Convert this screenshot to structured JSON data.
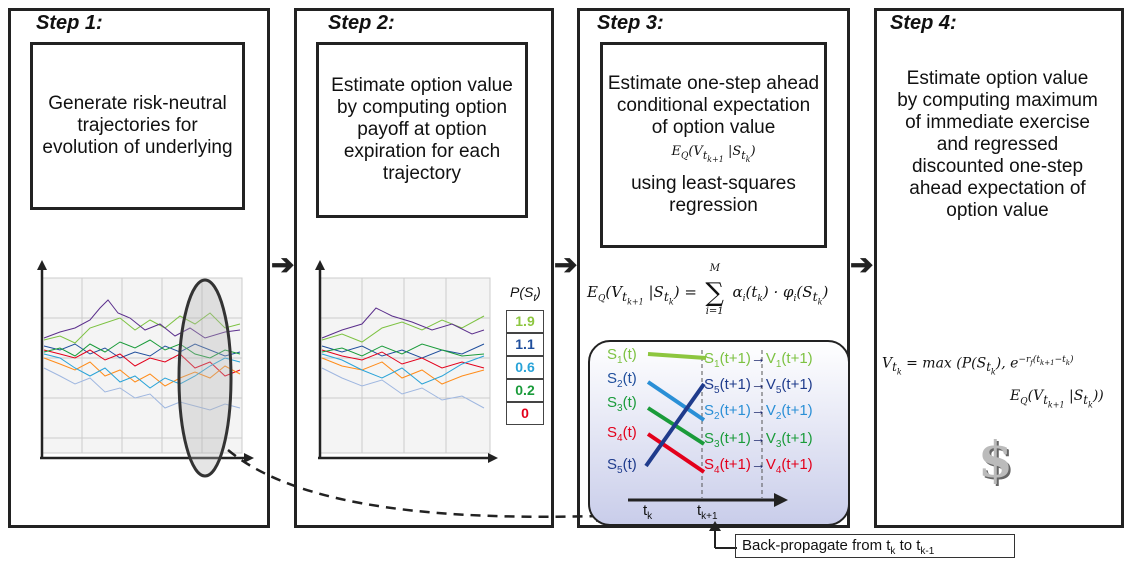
{
  "steps": [
    {
      "title": "Step 1:",
      "text": "Generate risk-neutral trajectories for evolution  of underlying"
    },
    {
      "title": "Step 2:",
      "text": "Estimate option value by computing option payoff at option expiration for each trajectory"
    },
    {
      "title": "Step 3:",
      "text_line1": "Estimate one-step ahead conditional expectation of option value",
      "text_line2": "using least-squares regression"
    },
    {
      "title": "Step 4:",
      "text": "Estimate option value by computing maximum of immediate exercise and regressed discounted one-step ahead expectation of option value"
    }
  ],
  "payoff": {
    "title": "P(S",
    "title_sub": "t",
    "title_end": ")",
    "values": [
      "1.9",
      "1.1",
      "0.6",
      "0.2",
      "0"
    ],
    "colors": [
      "#8dc63f",
      "#1f4e9c",
      "#29a3d8",
      "#1a9b3a",
      "#e3001b"
    ]
  },
  "regression_formula": {
    "lhs": "E",
    "q": "Q",
    "args": "(V",
    "sub1": "t",
    "subk1": "k+1",
    "bar": " |S",
    "subk": "k",
    "close": ") =",
    "sum_top": "M",
    "sum_bottom": "i=1",
    "rhs": "α",
    "rhs_i": "i",
    "rhs_rest": "(t",
    "rhs_rest2": ") · φ",
    "rhs_rest3": "(S",
    "rhs_close": ")"
  },
  "mapping": {
    "left": [
      {
        "s": "S",
        "i": "1",
        "t": "(t)",
        "color": "#7dc242"
      },
      {
        "s": "S",
        "i": "2",
        "t": "(t)",
        "color": "#1f4e9c"
      },
      {
        "s": "S",
        "i": "3",
        "t": "(t)",
        "color": "#1a9b3a"
      },
      {
        "s": "S",
        "i": "4",
        "t": "(t)",
        "color": "#e3001b"
      },
      {
        "s": "S",
        "i": "5",
        "t": "(t)",
        "color": "#1f3b8c"
      }
    ],
    "right": [
      {
        "s": "S",
        "i": "1",
        "t": "(t+1)",
        "arrow": "→",
        "v": "V",
        "vi": "1",
        "vt": "(t+1)",
        "color": "#7dc242"
      },
      {
        "s": "S",
        "i": "5",
        "t": "(t+1)",
        "arrow": "→",
        "v": "V",
        "vi": "5",
        "vt": "(t+1)",
        "color": "#1f3b8c"
      },
      {
        "s": "S",
        "i": "2",
        "t": "(t+1)",
        "arrow": "→",
        "v": "V",
        "vi": "2",
        "vt": "(t+1)",
        "color": "#2a8fd6"
      },
      {
        "s": "S",
        "i": "3",
        "t": "(t+1)",
        "arrow": "→",
        "v": "V",
        "vi": "3",
        "vt": "(t+1)",
        "color": "#1a9b3a"
      },
      {
        "s": "S",
        "i": "4",
        "t": "(t+1)",
        "arrow": "→",
        "v": "V",
        "vi": "4",
        "vt": "(t+1)",
        "color": "#e3001b"
      }
    ],
    "tk": "t",
    "tk_sub": "k",
    "tk1": "t",
    "tk1_sub": "k+1"
  },
  "cond_exp": {
    "e": "E",
    "q": "Q",
    "v": "(V",
    "sub": "t",
    "subsub": "k+1",
    "bar": " |S",
    "subsub2": "k",
    "close": ")"
  },
  "value_formula": {
    "v": "V",
    "vsub": "t",
    "vsubsub": "k",
    "eq": " = max ",
    "p": "(P(S",
    "psub": "t",
    "psubsub": "k",
    "pclose": "),",
    "exp": " e",
    "sup": "−r",
    "supsub": "f",
    "sup_rest": "(t",
    "sup_rest_sub": "k+1",
    "sup_rest2": "−t",
    "sup_rest2_sub": "k",
    "sup_close": ")",
    "e2": "E",
    "q": "Q",
    "v2": "(V",
    "sub2": "t",
    "subsub2": "k+1",
    "bar": " |S",
    "subsub3": "k",
    "close": "))"
  },
  "back_propagate": {
    "text": "Back-propagate from t",
    "sub1": "k",
    "mid": " to t",
    "sub2": "k-1"
  },
  "dollar": "$",
  "arrow_glyph": "➔"
}
